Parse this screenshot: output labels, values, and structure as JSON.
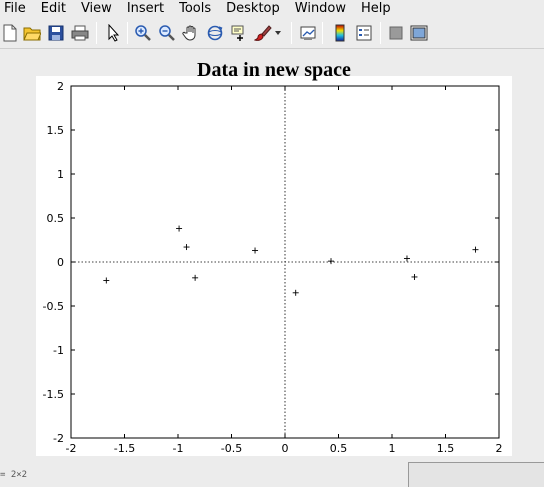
{
  "menu": [
    {
      "label": "File"
    },
    {
      "label": "Edit"
    },
    {
      "label": "View"
    },
    {
      "label": "Insert"
    },
    {
      "label": "Tools"
    },
    {
      "label": "Desktop"
    },
    {
      "label": "Window"
    },
    {
      "label": "Help"
    }
  ],
  "toolbar": {
    "buttons": [
      "new-file-icon",
      "open-folder-icon",
      "save-icon",
      "print-icon",
      "pointer-icon",
      "zoom-in-icon",
      "zoom-out-icon",
      "pan-hand-icon",
      "rotate-3d-icon",
      "data-cursor-icon",
      "brush-icon",
      "dropdown-arrow-icon",
      "link-plot-icon",
      "colorbar-icon",
      "legend-icon",
      "hide-plot-tools-icon",
      "show-plot-tools-icon"
    ]
  },
  "status_text": "= 2×2",
  "chart_data": {
    "type": "scatter",
    "title": "Data in new space",
    "xlabel": "",
    "ylabel": "",
    "xlim": [
      -2,
      2
    ],
    "ylim": [
      -2,
      2
    ],
    "xticks": [
      -2,
      -1.5,
      -1,
      -0.5,
      0,
      0.5,
      1,
      1.5,
      2
    ],
    "yticks": [
      -2,
      -1.5,
      -1,
      -0.5,
      0,
      0.5,
      1,
      1.5,
      2
    ],
    "xtick_labels": [
      "-2",
      "-1.5",
      "-1",
      "-0.5",
      "0",
      "0.5",
      "1",
      "1.5",
      "2"
    ],
    "ytick_labels": [
      "-2",
      "-1.5",
      "-1",
      "-0.5",
      "0",
      "0.5",
      "1",
      "1.5",
      "2"
    ],
    "marker": "+",
    "grid": false,
    "zero_lines": true,
    "points": [
      {
        "x": -1.67,
        "y": -0.21
      },
      {
        "x": -0.99,
        "y": 0.38
      },
      {
        "x": -0.92,
        "y": 0.17
      },
      {
        "x": -0.84,
        "y": -0.18
      },
      {
        "x": -0.28,
        "y": 0.13
      },
      {
        "x": 0.1,
        "y": -0.35
      },
      {
        "x": 0.43,
        "y": 0.01
      },
      {
        "x": 1.14,
        "y": 0.04
      },
      {
        "x": 1.21,
        "y": -0.17
      },
      {
        "x": 1.78,
        "y": 0.14
      }
    ]
  }
}
